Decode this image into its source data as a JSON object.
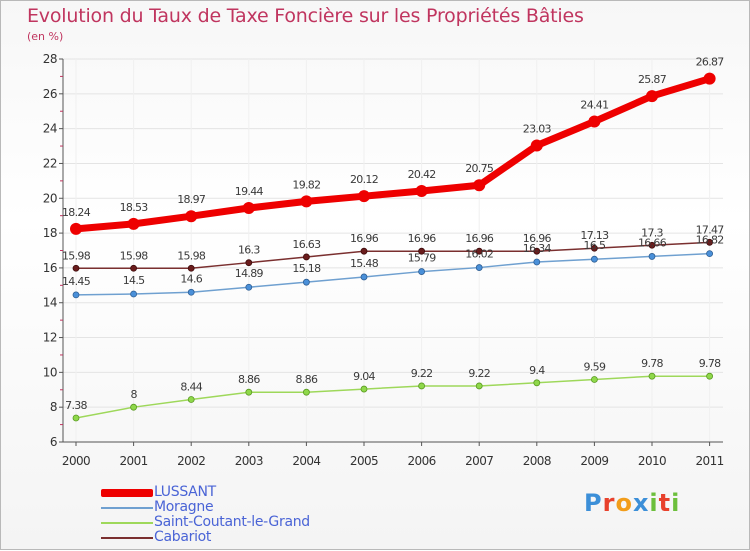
{
  "header": {
    "title": "Evolution du Taux de Taxe Foncière sur les Propriétés Bâties",
    "unit": "(en %)"
  },
  "chart_data": {
    "type": "line",
    "title": "Evolution du Taux de Taxe Foncière sur les Propriétés Bâties",
    "ylabel": "(en %)",
    "xlabel": "",
    "x": [
      "2000",
      "2001",
      "2002",
      "2003",
      "2004",
      "2005",
      "2006",
      "2007",
      "2008",
      "2009",
      "2010",
      "2011"
    ],
    "ylim": [
      6,
      28
    ],
    "yticks": [
      "6",
      "8",
      "10",
      "12",
      "14",
      "16",
      "18",
      "20",
      "22",
      "24",
      "26",
      "28"
    ],
    "series": [
      {
        "name": "LUSSANT",
        "color": "#ee0000",
        "values": [
          18.24,
          18.53,
          18.97,
          19.44,
          19.82,
          20.12,
          20.42,
          20.75,
          23.03,
          24.41,
          25.87,
          26.87
        ],
        "labels": [
          "18.24",
          "18.53",
          "18.97",
          "19.44",
          "19.82",
          "20.12",
          "20.42",
          "20.75",
          "23.03",
          "24.41",
          "25.87",
          "26.87"
        ]
      },
      {
        "name": "Moragne",
        "color": "#6fa0d0",
        "values": [
          14.45,
          14.5,
          14.6,
          14.89,
          15.18,
          15.48,
          15.79,
          16.02,
          16.34,
          16.5,
          16.66,
          16.82
        ],
        "labels": [
          "14.45",
          "14.5",
          "14.6",
          "14.89",
          "15.18",
          "15.48",
          "15.79",
          "16.02",
          "16.34",
          "16.5",
          "16.66",
          "16.82"
        ]
      },
      {
        "name": "Saint-Coutant-le-Grand",
        "color": "#9ed85a",
        "values": [
          7.38,
          8,
          8.44,
          8.86,
          8.86,
          9.04,
          9.22,
          9.22,
          9.4,
          9.59,
          9.78,
          9.78
        ],
        "labels": [
          "7.38",
          "8",
          "8.44",
          "8.86",
          "8.86",
          "9.04",
          "9.22",
          "9.22",
          "9.4",
          "9.59",
          "9.78",
          "9.78"
        ]
      },
      {
        "name": "Cabariot",
        "color": "#7a2f2f",
        "values": [
          15.98,
          15.98,
          15.98,
          16.3,
          16.63,
          16.96,
          16.96,
          16.96,
          16.96,
          17.13,
          17.3,
          17.47
        ],
        "labels": [
          "15.98",
          "15.98",
          "15.98",
          "16.3",
          "16.63",
          "16.96",
          "16.96",
          "16.96",
          "16.96",
          "17.13",
          "17.3",
          "17.47"
        ]
      }
    ],
    "legend_position": "bottom-left",
    "grid": true
  },
  "legend": [
    {
      "label": "LUSSANT",
      "color": "#ee0000"
    },
    {
      "label": "Moragne",
      "color": "#6fa0d0"
    },
    {
      "label": "Saint-Coutant-le-Grand",
      "color": "#9ed85a"
    },
    {
      "label": "Cabariot",
      "color": "#7a2f2f"
    }
  ],
  "brand": {
    "letters": [
      "P",
      "r",
      "o",
      "x",
      "i",
      "t",
      "i"
    ],
    "colors": [
      "#3c8fd8",
      "#e8412c",
      "#f29d1a",
      "#3c8fd8",
      "#6cbf3c",
      "#e8412c",
      "#6cbf3c"
    ]
  }
}
